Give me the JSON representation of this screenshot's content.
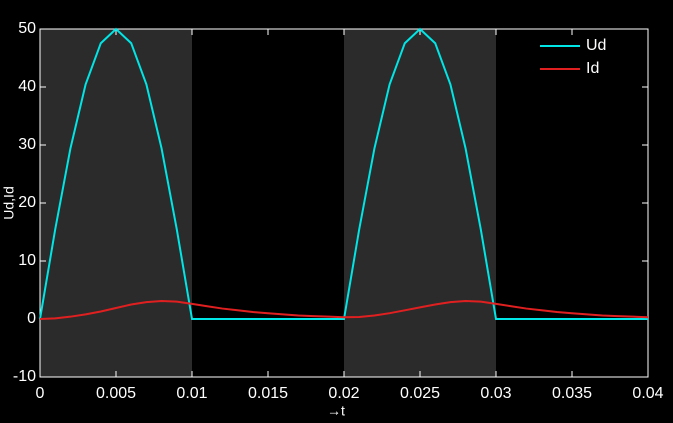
{
  "chart_data": {
    "type": "line",
    "xlabel": "→t",
    "ylabel": "Ud,Id",
    "x": [
      0,
      0.001,
      0.002,
      0.003,
      0.004,
      0.005,
      0.006,
      0.007,
      0.008,
      0.009,
      0.01,
      0.011,
      0.012,
      0.013,
      0.014,
      0.015,
      0.016,
      0.017,
      0.018,
      0.019,
      0.02,
      0.021,
      0.022,
      0.023,
      0.024,
      0.025,
      0.026,
      0.027,
      0.028,
      0.029,
      0.03,
      0.031,
      0.032,
      0.033,
      0.034,
      0.035,
      0.036,
      0.037,
      0.038,
      0.039,
      0.04
    ],
    "series": [
      {
        "name": "Ud",
        "color": "#00e5e5",
        "values": [
          0,
          15.45,
          29.39,
          40.45,
          47.55,
          50,
          47.55,
          40.45,
          29.39,
          15.45,
          0,
          0,
          0,
          0,
          0,
          0,
          0,
          0,
          0,
          0,
          0,
          15.45,
          29.39,
          40.45,
          47.55,
          50,
          47.55,
          40.45,
          29.39,
          15.45,
          0,
          0,
          0,
          0,
          0,
          0,
          0,
          0,
          0,
          0,
          0
        ]
      },
      {
        "name": "Id",
        "color": "#e02020",
        "values": [
          0,
          0.1,
          0.4,
          0.8,
          1.3,
          1.9,
          2.5,
          2.9,
          3.1,
          3.0,
          2.6,
          2.2,
          1.8,
          1.5,
          1.2,
          1.0,
          0.8,
          0.6,
          0.5,
          0.4,
          0.3,
          0.35,
          0.6,
          1.0,
          1.5,
          2.0,
          2.5,
          2.9,
          3.1,
          3.0,
          2.6,
          2.2,
          1.8,
          1.5,
          1.2,
          1.0,
          0.8,
          0.6,
          0.5,
          0.4,
          0.3
        ]
      }
    ],
    "shaded_intervals": [
      [
        0,
        0.01
      ],
      [
        0.02,
        0.03
      ]
    ],
    "shade_color": "#2b2b2b",
    "xlim": [
      0,
      0.04
    ],
    "xticks": [
      0,
      0.005,
      0.01,
      0.015,
      0.02,
      0.025,
      0.03,
      0.035,
      0.04
    ],
    "ylim": [
      -10,
      50
    ],
    "yticks": [
      -10,
      0,
      10,
      20,
      30,
      40,
      50
    ],
    "legend": "top-right"
  }
}
